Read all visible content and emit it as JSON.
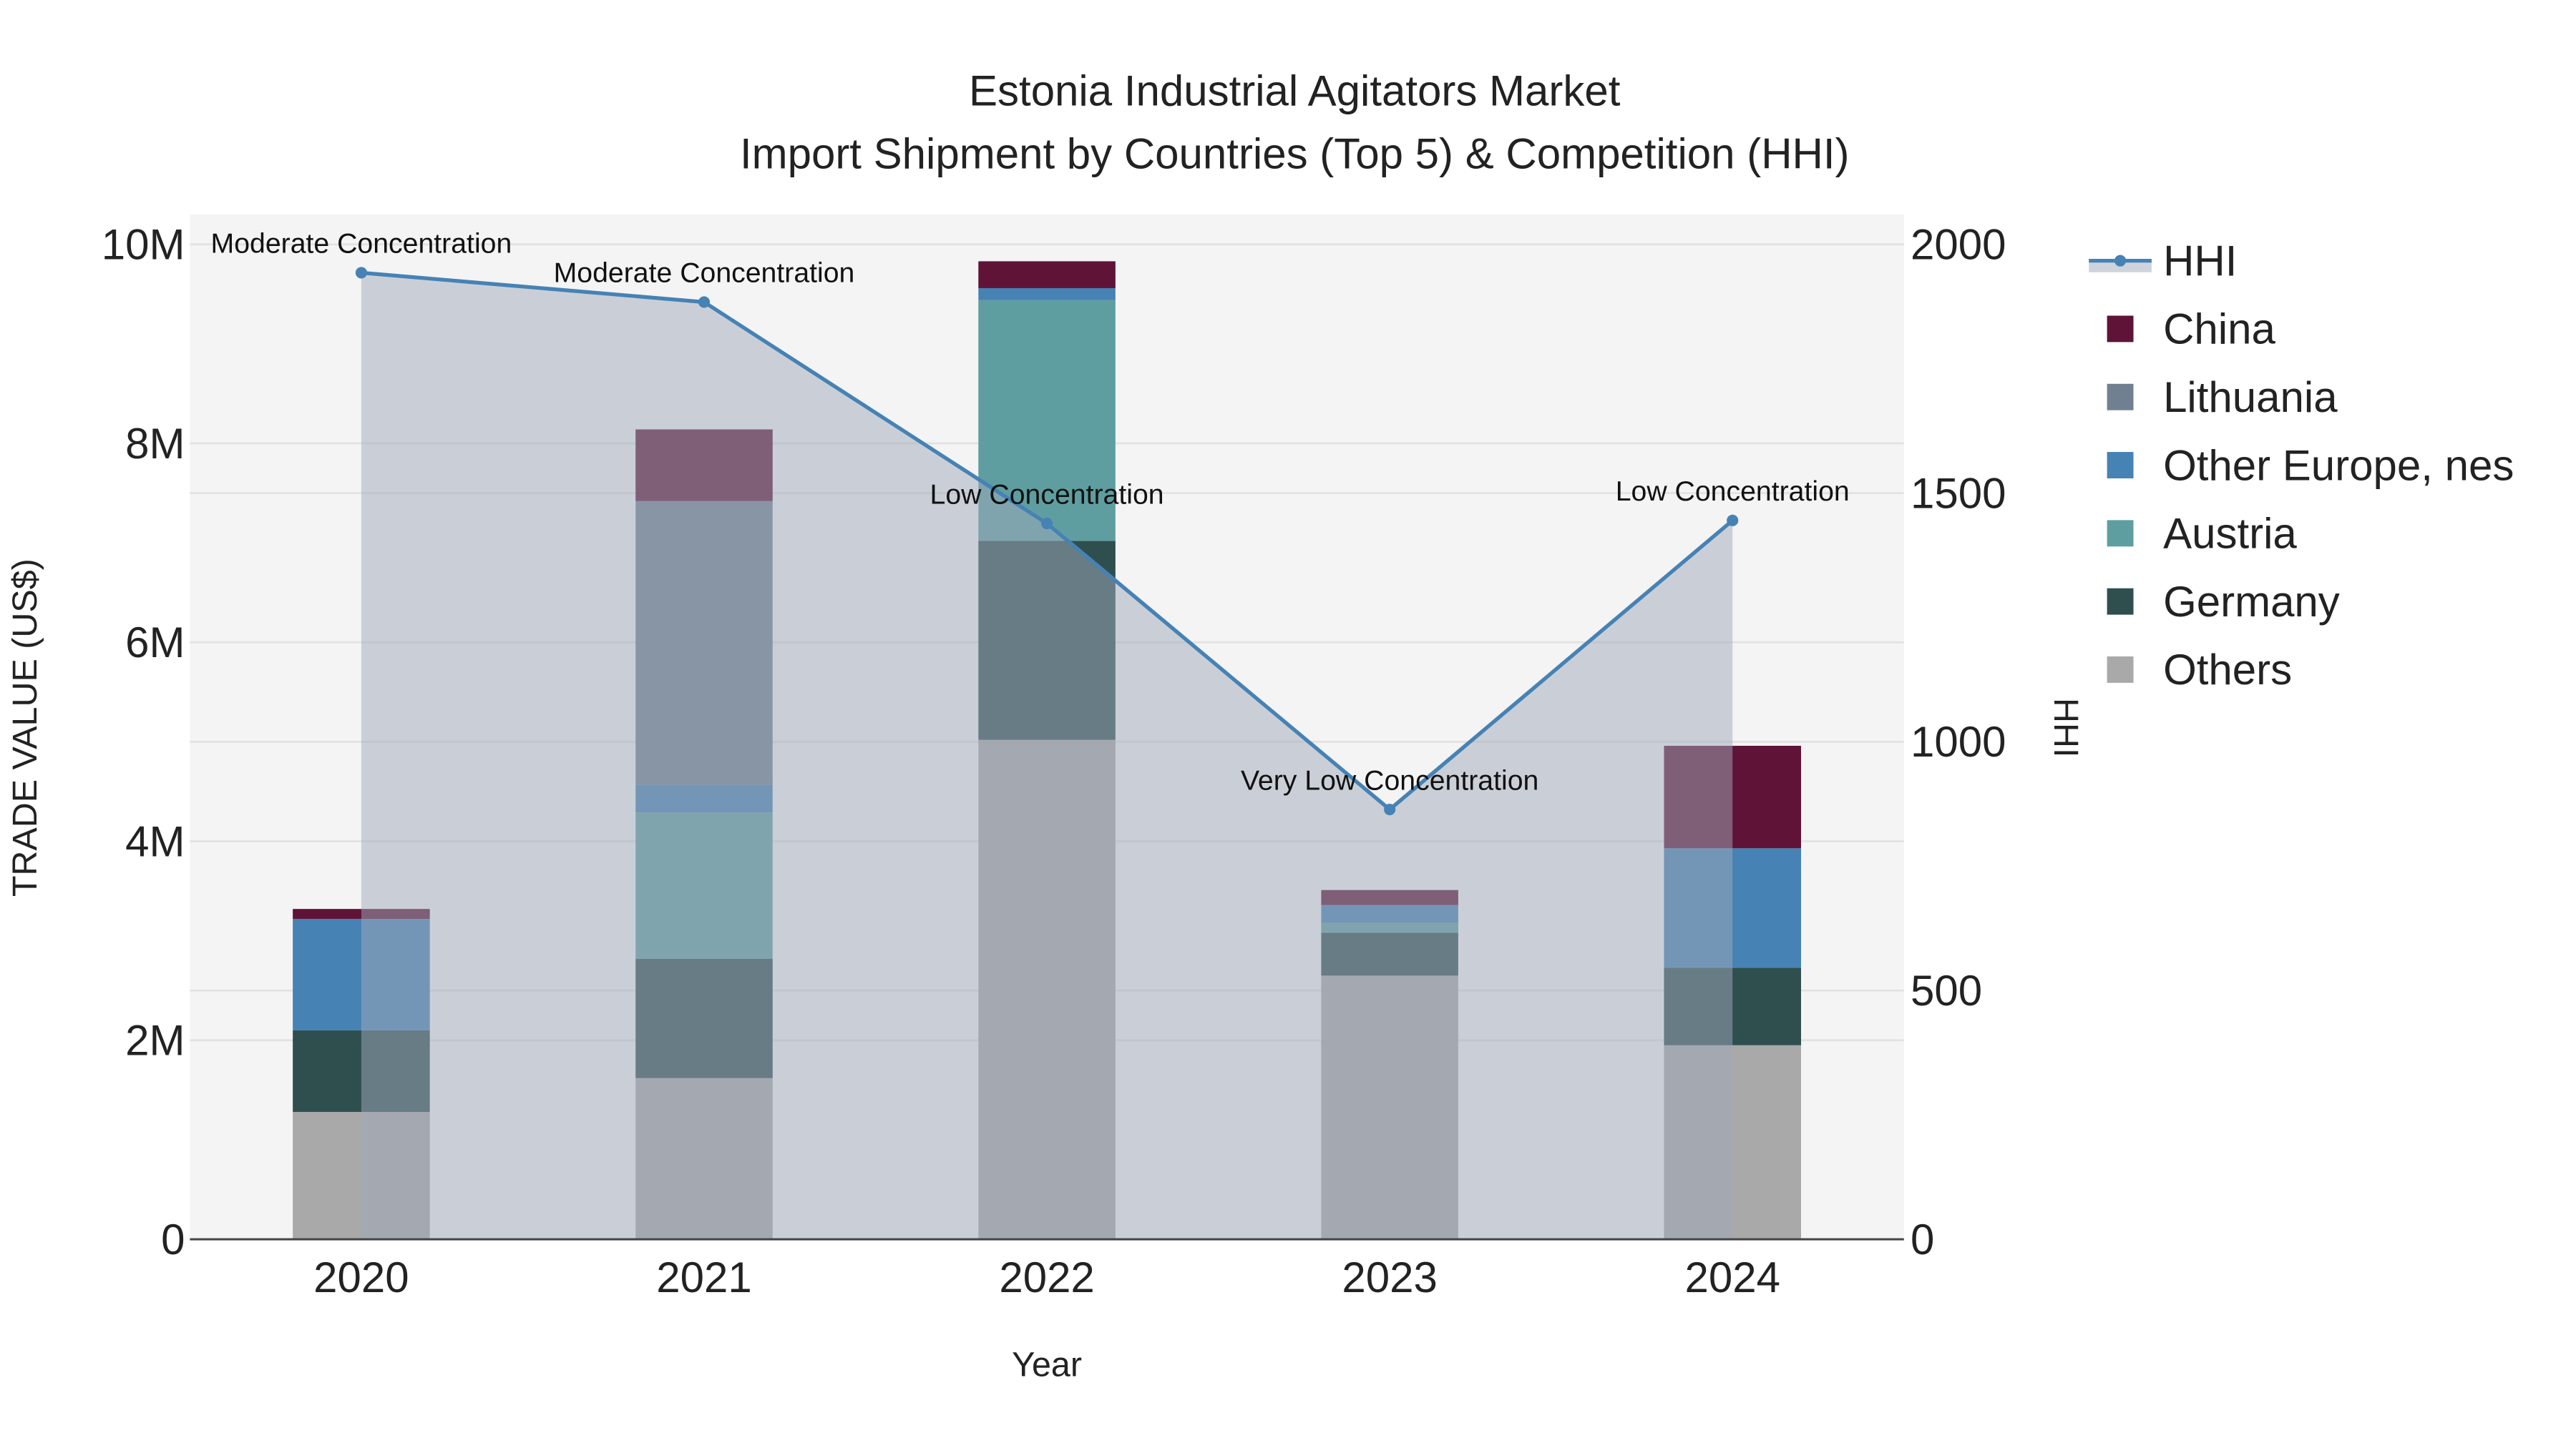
{
  "chart_data": {
    "type": "bar",
    "title_line1": "Estonia Industrial Agitators Market",
    "title_line2": "Import Shipment by Countries (Top 5) & Competition (HHI)",
    "xlabel": "Year",
    "ylabel": "TRADE VALUE (US$)",
    "y2label": "HHI",
    "categories": [
      "2020",
      "2021",
      "2022",
      "2023",
      "2024"
    ],
    "ylim": [
      0,
      10300000
    ],
    "y2lim": [
      0,
      2060
    ],
    "yticks": [
      0,
      2000000,
      4000000,
      6000000,
      8000000,
      10000000
    ],
    "ytick_labels": [
      "0",
      "2M",
      "4M",
      "6M",
      "8M",
      "10M"
    ],
    "y2ticks": [
      0,
      500,
      1000,
      1500,
      2000
    ],
    "y2tick_labels": [
      "0",
      "500",
      "1000",
      "1500",
      "2000"
    ],
    "grid": true,
    "legend_position": "right",
    "series": [
      {
        "name": "Others",
        "color": "#a9a9a9",
        "values": [
          1280000,
          1620000,
          5020000,
          2650000,
          1950000
        ]
      },
      {
        "name": "Germany",
        "color": "#2f4f4f",
        "values": [
          820000,
          1200000,
          2000000,
          430000,
          780000
        ]
      },
      {
        "name": "Austria",
        "color": "#5f9ea0",
        "values": [
          0,
          1470000,
          2420000,
          100000,
          0
        ]
      },
      {
        "name": "Other Europe, nes",
        "color": "#4682b4",
        "values": [
          1120000,
          280000,
          120000,
          180000,
          1200000
        ]
      },
      {
        "name": "Lithuania",
        "color": "#708090",
        "values": [
          0,
          2850000,
          0,
          0,
          0
        ]
      },
      {
        "name": "China",
        "color": "#5f1337",
        "values": [
          100000,
          720000,
          270000,
          150000,
          1030000
        ]
      }
    ],
    "hhi": {
      "name": "HHI",
      "color": "#4682b4",
      "values": [
        1943,
        1884,
        1439,
        864,
        1445
      ],
      "annotations": [
        "Moderate Concentration",
        "Moderate Concentration",
        "Low Concentration",
        "Very Low Concentration",
        "Low Concentration"
      ]
    },
    "legend_order": [
      "HHI",
      "China",
      "Lithuania",
      "Other Europe, nes",
      "Austria",
      "Germany",
      "Others"
    ]
  }
}
